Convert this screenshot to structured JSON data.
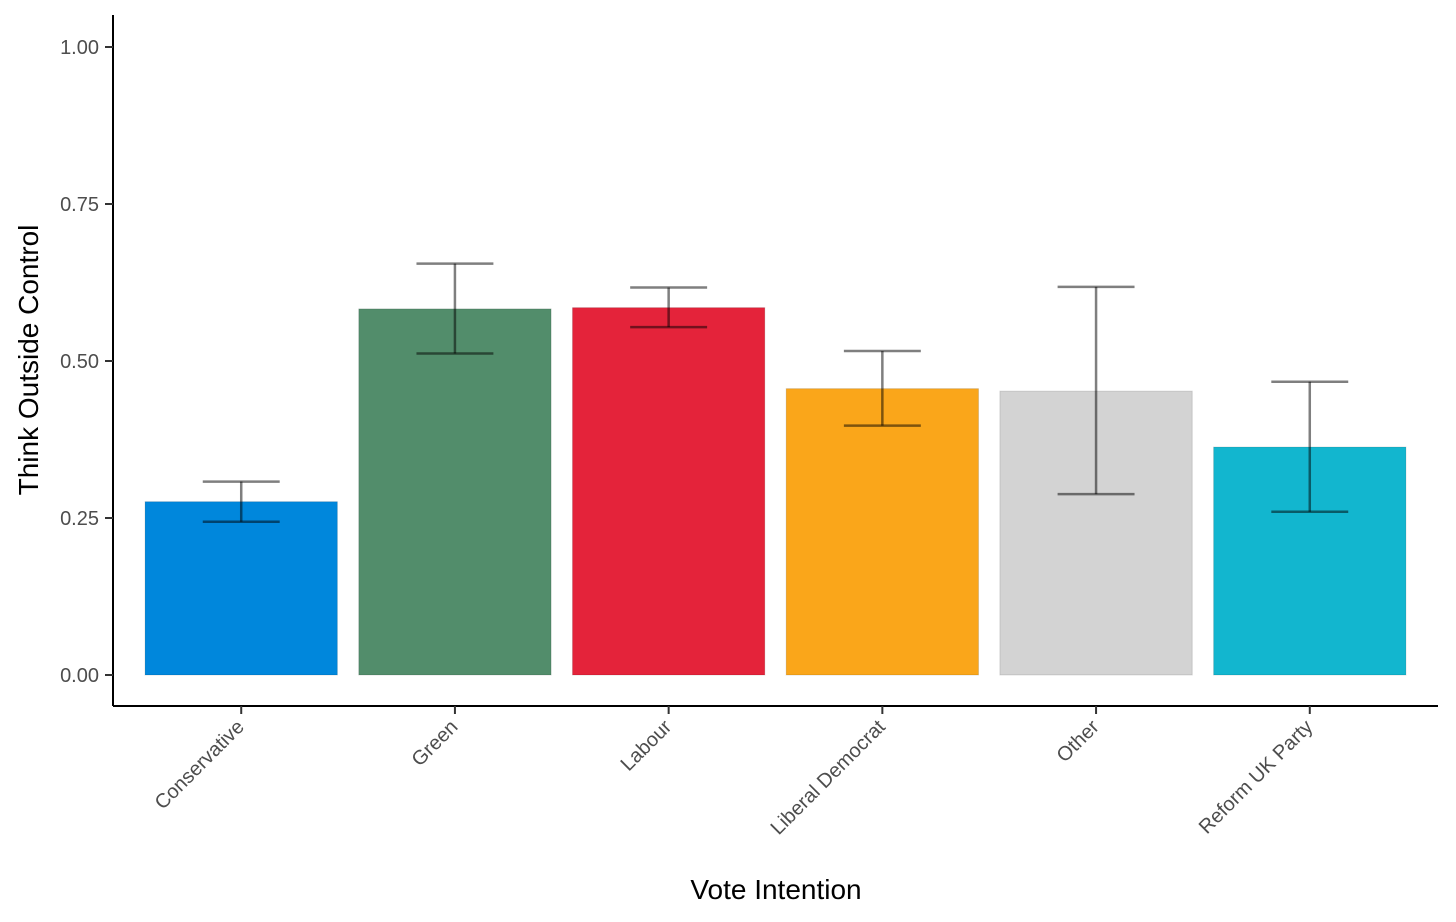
{
  "chart_data": {
    "type": "bar",
    "title": "",
    "xlabel": "Vote Intention",
    "ylabel": "Think Outside Control",
    "ylim": [
      -0.05,
      1.05
    ],
    "yticks": [
      0.0,
      0.25,
      0.5,
      0.75,
      1.0
    ],
    "ytick_labels": [
      "0.00",
      "0.25",
      "0.50",
      "0.75",
      "1.00"
    ],
    "grid": false,
    "legend": "none",
    "categories": [
      "Conservative",
      "Green",
      "Labour",
      "Liberal Democrat",
      "Other",
      "Reform UK Party"
    ],
    "values": [
      0.276,
      0.583,
      0.585,
      0.456,
      0.452,
      0.363
    ],
    "error_low": [
      0.244,
      0.512,
      0.554,
      0.397,
      0.288,
      0.26
    ],
    "error_high": [
      0.308,
      0.655,
      0.617,
      0.516,
      0.618,
      0.467
    ],
    "colors": [
      "#0087DC",
      "#528D6B",
      "#E4233A",
      "#FAA61A",
      "#D3D3D3",
      "#12B6CF"
    ],
    "error_bar_color": "#000000"
  }
}
